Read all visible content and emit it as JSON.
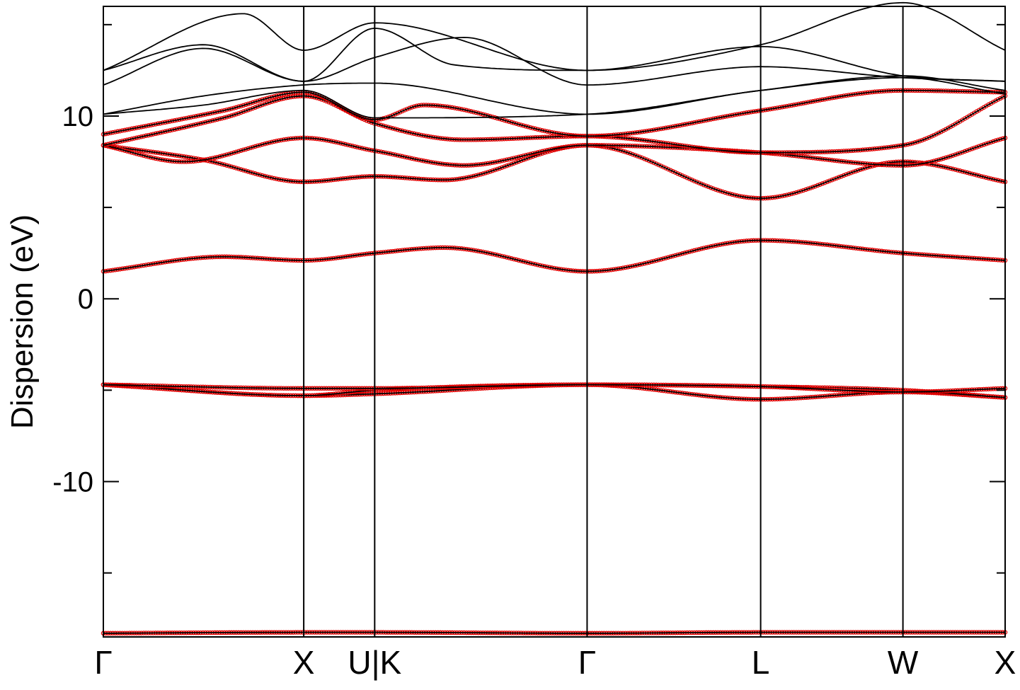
{
  "chart_data": {
    "type": "line",
    "title": "",
    "xlabel": "",
    "ylabel": "Dispersion (eV)",
    "ylim": [
      -18.5,
      16
    ],
    "xlim": [
      0,
      4.5
    ],
    "yticks": [
      {
        "value": 10,
        "label": "10"
      },
      {
        "value": 0,
        "label": "0"
      },
      {
        "value": -10,
        "label": "-10"
      }
    ],
    "y_minor_step": 5,
    "symmetry_points": [
      {
        "x": 0,
        "label": "Γ"
      },
      {
        "x": 1.0,
        "label": "X"
      },
      {
        "x": 1.354,
        "label": "U|K"
      },
      {
        "x": 2.414,
        "label": "Γ"
      },
      {
        "x": 3.28,
        "label": "L"
      },
      {
        "x": 3.99,
        "label": "W"
      },
      {
        "x": 4.5,
        "label": "X"
      }
    ],
    "colors": {
      "reference": "#000000",
      "fit": "#e00000"
    },
    "grid": false,
    "legend": "none",
    "series": [
      {
        "x": [
          0,
          1.0,
          1.354,
          2.414,
          3.28,
          3.99,
          4.5
        ],
        "y": [
          -18.3,
          -18.25,
          -18.25,
          -18.3,
          -18.25,
          -18.25,
          -18.25
        ],
        "fit": true
      },
      {
        "x": [
          0,
          1.0,
          1.354,
          2.414,
          3.28,
          3.99,
          4.5
        ],
        "y": [
          -4.7,
          -5.3,
          -5.2,
          -4.7,
          -5.5,
          -5.1,
          -5.4
        ],
        "fit": true
      },
      {
        "x": [
          0,
          1.0,
          1.354,
          2.414,
          3.28,
          3.99,
          4.5
        ],
        "y": [
          -4.7,
          -5.3,
          -5.0,
          -4.7,
          -4.8,
          -5.0,
          -5.4
        ],
        "fit": true
      },
      {
        "x": [
          0,
          1.0,
          1.354,
          2.414,
          3.28,
          3.99,
          4.5
        ],
        "y": [
          -4.7,
          -4.9,
          -4.9,
          -4.7,
          -4.8,
          -5.1,
          -4.9
        ],
        "fit": true
      },
      {
        "x": [
          0,
          0.6,
          1.0,
          1.354,
          1.7,
          2.414,
          3.28,
          3.99,
          4.5
        ],
        "y": [
          1.5,
          2.3,
          2.1,
          2.5,
          2.8,
          1.5,
          3.2,
          2.5,
          2.1
        ],
        "fit": true
      },
      {
        "x": [
          0,
          0.5,
          1.0,
          1.354,
          1.7,
          2.414,
          3.28,
          3.99,
          4.5
        ],
        "y": [
          8.4,
          7.6,
          6.4,
          6.7,
          6.5,
          8.4,
          5.5,
          7.5,
          6.4
        ],
        "fit": true
      },
      {
        "x": [
          0,
          0.4,
          1.0,
          1.354,
          1.8,
          2.414,
          3.28,
          3.99,
          4.5
        ],
        "y": [
          8.4,
          7.5,
          8.8,
          8.1,
          7.3,
          8.4,
          8.0,
          7.3,
          8.8
        ],
        "fit": true
      },
      {
        "x": [
          0,
          0.6,
          1.0,
          1.354,
          1.8,
          2.414,
          3.28,
          3.99,
          4.5
        ],
        "y": [
          8.4,
          9.9,
          11.1,
          9.6,
          8.7,
          8.9,
          8.0,
          8.4,
          11.1
        ],
        "fit": true
      },
      {
        "x": [
          0,
          0.6,
          1.0,
          1.354,
          1.6,
          2.414,
          3.28,
          3.99,
          4.5
        ],
        "y": [
          9.0,
          10.3,
          11.3,
          9.8,
          10.6,
          8.9,
          10.3,
          11.4,
          11.3
        ],
        "fit": true
      },
      {
        "x": [
          0,
          0.5,
          1.0,
          1.354,
          2.414,
          3.28,
          3.99,
          4.5
        ],
        "y": [
          10.1,
          11.1,
          11.7,
          11.8,
          10.1,
          11.4,
          12.1,
          11.2
        ],
        "fit": false
      },
      {
        "x": [
          0,
          0.5,
          1.0,
          1.354,
          2.414,
          3.28,
          3.99,
          4.5
        ],
        "y": [
          10.1,
          10.6,
          11.4,
          9.9,
          10.1,
          11.4,
          12.2,
          11.4
        ],
        "fit": false
      },
      {
        "x": [
          0,
          0.5,
          1.0,
          1.354,
          1.8,
          2.414,
          3.28,
          3.99,
          4.5
        ],
        "y": [
          11.7,
          13.7,
          11.9,
          13.2,
          14.3,
          11.7,
          12.7,
          12.1,
          11.9
        ],
        "fit": false
      },
      {
        "x": [
          0,
          0.5,
          1.0,
          1.354,
          1.75,
          2.414,
          3.28,
          3.99,
          4.5
        ],
        "y": [
          12.5,
          13.9,
          11.9,
          14.8,
          12.8,
          12.5,
          13.8,
          12.2,
          11.9
        ],
        "fit": false
      },
      {
        "x": [
          0,
          0.7,
          1.0,
          1.354,
          2.414,
          3.28,
          3.99,
          4.5
        ],
        "y": [
          12.5,
          15.6,
          13.6,
          15.1,
          12.5,
          13.9,
          16.2,
          13.6
        ],
        "fit": false
      }
    ]
  }
}
